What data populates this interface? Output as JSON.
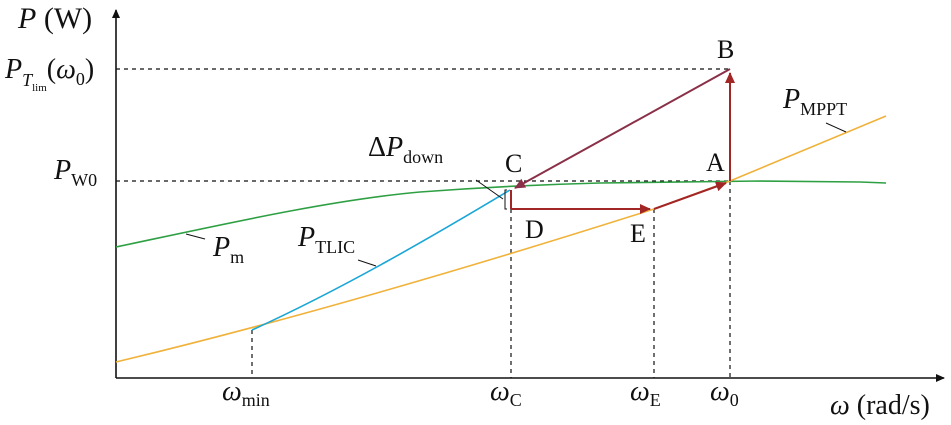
{
  "axes": {
    "y_label_var": "P",
    "y_label_unit": " (W)",
    "x_label_var": "ω",
    "x_label_unit": " (rad/s)"
  },
  "y_ticks": {
    "plim_main": "P",
    "plim_sub": "T",
    "plim_subsub": "lim",
    "plim_arg_open": "(",
    "plim_arg_var": "ω",
    "plim_arg_sub": "0",
    "plim_arg_close": ")",
    "pw0_main": "P",
    "pw0_sub": "W0"
  },
  "x_ticks": {
    "min_var": "ω",
    "min_sub": "min",
    "c_var": "ω",
    "c_sub": "C",
    "e_var": "ω",
    "e_sub": "E",
    "zero_var": "ω",
    "zero_sub": "0"
  },
  "points": {
    "A": "A",
    "B": "B",
    "C": "C",
    "D": "D",
    "E": "E"
  },
  "curves": {
    "pm_main": "P",
    "pm_sub": "m",
    "ptlic_main": "P",
    "ptlic_sub": "TLIC",
    "pmppt_main": "P",
    "pmppt_sub": "MPPT"
  },
  "annotation": {
    "delta": "Δ",
    "main": "P",
    "sub": "down"
  },
  "colors": {
    "pm": "#2ea043",
    "ptlic": "#1aa6d6",
    "pmppt": "#f0b23a",
    "path": "#a32626",
    "path_cb": "#8a3048",
    "axis": "#111111"
  }
}
